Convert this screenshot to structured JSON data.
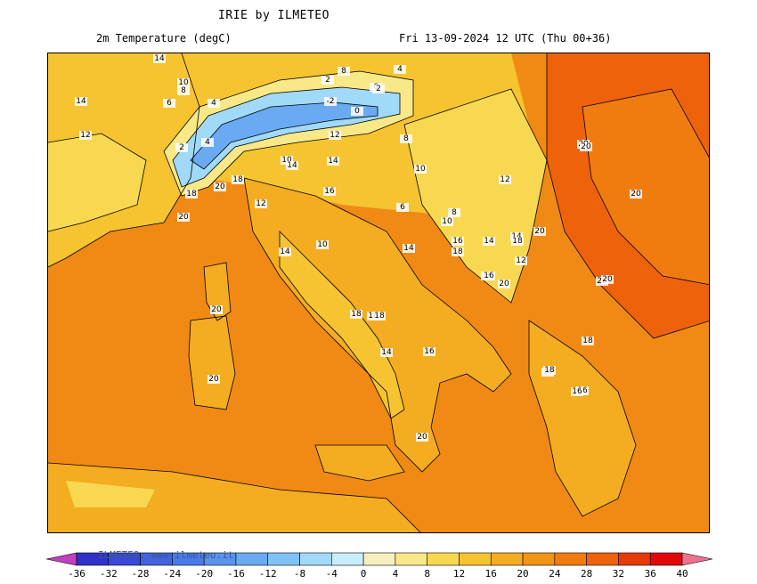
{
  "header": {
    "title": "IRIE by ILMETEO",
    "variable": "2m Temperature (degC)",
    "valid_time": "Fri 13-09-2024 12 UTC (Thu 00+36)"
  },
  "credit": "ILMETEO: www.ilmeteo.it",
  "colorbar": {
    "tick_labels": [
      "-36",
      "-32",
      "-28",
      "-24",
      "-20",
      "-16",
      "-12",
      "-8",
      "-4",
      "0",
      "4",
      "8",
      "12",
      "16",
      "20",
      "24",
      "28",
      "32",
      "36",
      "40"
    ],
    "colors": [
      "#2a1fb0",
      "#3030c8",
      "#3a48d8",
      "#4262e0",
      "#4a7ae8",
      "#5a92ee",
      "#6aaaf2",
      "#80c2f6",
      "#a0daf8",
      "#c8eefa",
      "#f6f0c0",
      "#f8e888",
      "#f8d850",
      "#f6c430",
      "#f4ac20",
      "#f29416",
      "#f07c10",
      "#ee620c",
      "#e63a08",
      "#e00a0a"
    ],
    "under_color": "#c040c0",
    "over_color": "#f07090"
  },
  "map": {
    "contour_labels": [
      {
        "text": "14"
      },
      {
        "text": "10"
      },
      {
        "text": "8"
      },
      {
        "text": "6"
      },
      {
        "text": "4"
      },
      {
        "text": "8"
      },
      {
        "text": "2"
      },
      {
        "text": "6"
      },
      {
        "text": "4"
      },
      {
        "text": "2"
      },
      {
        "text": "-2"
      },
      {
        "text": "0"
      },
      {
        "text": "14"
      },
      {
        "text": "12"
      },
      {
        "text": "4"
      },
      {
        "text": "2"
      },
      {
        "text": "12"
      },
      {
        "text": "8"
      },
      {
        "text": "10"
      },
      {
        "text": "14"
      },
      {
        "text": "14"
      },
      {
        "text": "18"
      },
      {
        "text": "20"
      },
      {
        "text": "18"
      },
      {
        "text": "16"
      },
      {
        "text": "10"
      },
      {
        "text": "12"
      },
      {
        "text": "6"
      },
      {
        "text": "20"
      },
      {
        "text": "8"
      },
      {
        "text": "10"
      },
      {
        "text": "16"
      },
      {
        "text": "14"
      },
      {
        "text": "12"
      },
      {
        "text": "14"
      },
      {
        "text": "18"
      },
      {
        "text": "14"
      },
      {
        "text": "10"
      },
      {
        "text": "20"
      },
      {
        "text": "20"
      },
      {
        "text": "20"
      },
      {
        "text": "14"
      },
      {
        "text": "18"
      },
      {
        "text": "16"
      },
      {
        "text": "20"
      },
      {
        "text": "16"
      },
      {
        "text": "20"
      },
      {
        "text": "16"
      },
      {
        "text": "18"
      },
      {
        "text": "18"
      },
      {
        "text": "20"
      },
      {
        "text": "12"
      },
      {
        "text": "16"
      },
      {
        "text": "20"
      },
      {
        "text": "18"
      },
      {
        "text": "20"
      },
      {
        "text": "18"
      },
      {
        "text": "14"
      },
      {
        "text": "16"
      },
      {
        "text": "18"
      },
      {
        "text": "20"
      },
      {
        "text": "20"
      },
      {
        "text": "16"
      }
    ]
  }
}
